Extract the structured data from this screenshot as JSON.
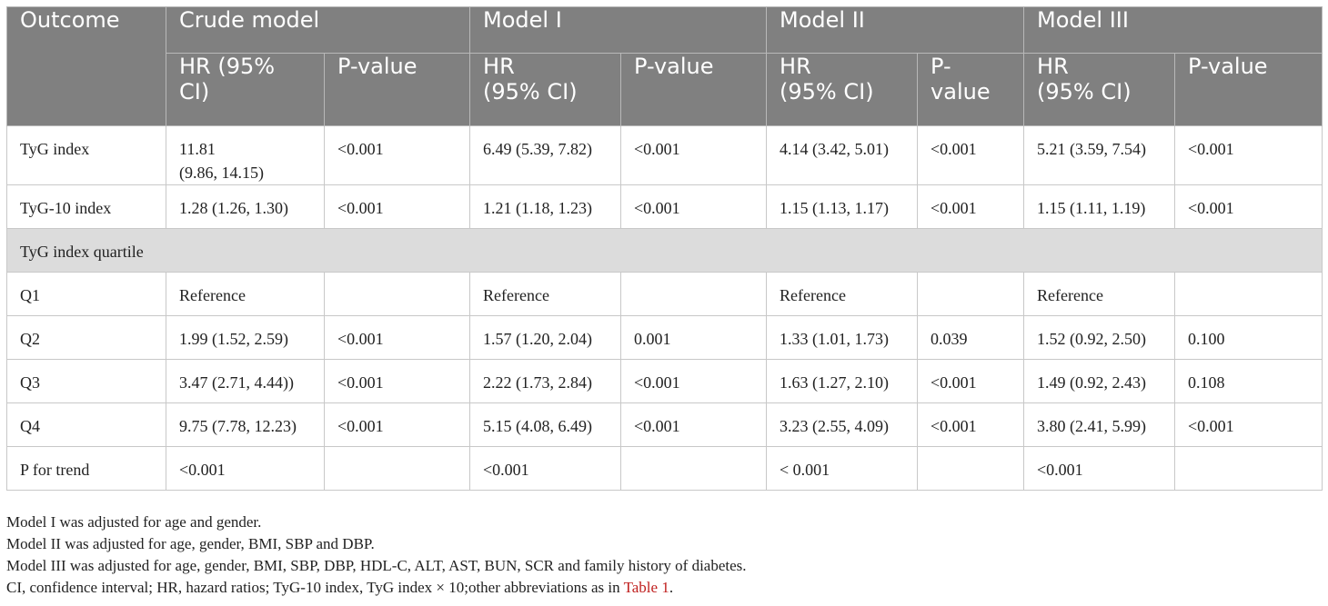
{
  "header": {
    "outcome": "Outcome",
    "models": [
      "Crude model",
      "Model I",
      "Model II",
      "Model III"
    ],
    "subheaders": [
      "HR (95% CI)",
      "P-value",
      "HR\n(95% CI)",
      "P-value",
      "HR\n(95% CI)",
      "P-\nvalue",
      "HR\n(95% CI)",
      "P-value"
    ]
  },
  "rows": [
    {
      "label": "TyG index",
      "cells": [
        "11.81\n(9.86, 14.15)",
        "<0.001",
        "6.49 (5.39, 7.82)",
        "<0.001",
        "4.14 (3.42, 5.01)",
        "<0.001",
        "5.21 (3.59, 7.54)",
        "<0.001"
      ]
    },
    {
      "label": "TyG-10 index",
      "cells": [
        "1.28 (1.26, 1.30)",
        "<0.001",
        "1.21 (1.18, 1.23)",
        "<0.001",
        "1.15 (1.13, 1.17)",
        "<0.001",
        "1.15 (1.11, 1.19)",
        "<0.001"
      ]
    }
  ],
  "section": {
    "label": "TyG index quartile"
  },
  "quartile_rows": [
    {
      "label": "Q1",
      "cells": [
        "Reference",
        "",
        "Reference",
        "",
        "Reference",
        "",
        "Reference",
        ""
      ]
    },
    {
      "label": "Q2",
      "cells": [
        "1.99 (1.52, 2.59)",
        "<0.001",
        "1.57 (1.20, 2.04)",
        "0.001",
        "1.33 (1.01, 1.73)",
        "0.039",
        "1.52 (0.92, 2.50)",
        "0.100"
      ]
    },
    {
      "label": "Q3",
      "cells": [
        "3.47 (2.71, 4.44))",
        "<0.001",
        "2.22 (1.73, 2.84)",
        "<0.001",
        "1.63 (1.27, 2.10)",
        "<0.001",
        "1.49 (0.92, 2.43)",
        "0.108"
      ]
    },
    {
      "label": "Q4",
      "cells": [
        "9.75 (7.78, 12.23)",
        "<0.001",
        "5.15 (4.08, 6.49)",
        "<0.001",
        "3.23 (2.55, 4.09)",
        "<0.001",
        "3.80 (2.41, 5.99)",
        "<0.001"
      ]
    },
    {
      "label": "P for trend",
      "cells": [
        "<0.001",
        "",
        "<0.001",
        "",
        "< 0.001",
        "",
        "<0.001",
        ""
      ]
    }
  ],
  "notes": {
    "line1": "Model I was adjusted for age and gender.",
    "line2": "Model II was adjusted for age, gender, BMI, SBP and DBP.",
    "line3": "Model III was adjusted for age, gender, BMI, SBP, DBP, HDL-C, ALT, AST, BUN, SCR and family history of diabetes.",
    "line4_text": "CI, confidence interval; HR, hazard ratios; TyG-10 index, TyG index × 10;other abbreviations as in ",
    "line4_link": "Table 1",
    "line4_end": "."
  },
  "colors": {
    "header_bg": "#808080",
    "section_bg": "#dcdcdc",
    "link": "#c0201f",
    "border": "#c8c8c8"
  }
}
